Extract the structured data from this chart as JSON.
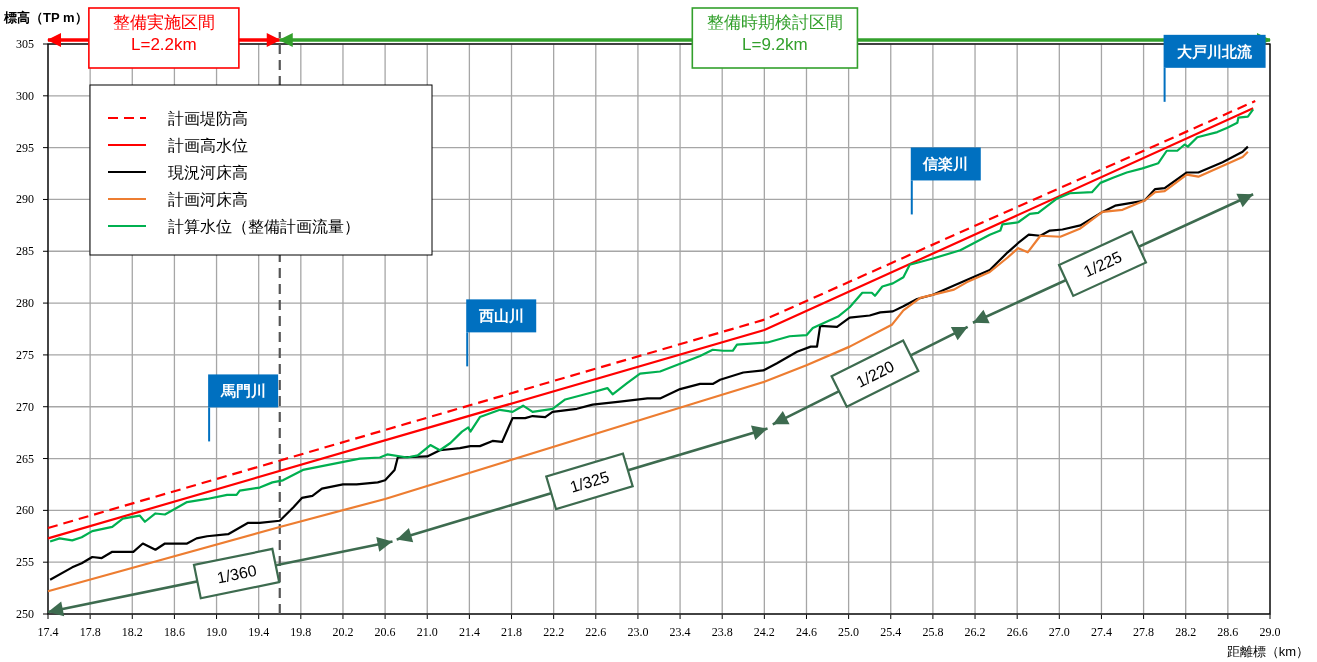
{
  "chart_data": {
    "type": "line",
    "xlabel": "距離標（km）",
    "ylabel": "標高（TP m）",
    "xlim": [
      17.4,
      29.0
    ],
    "ylim": [
      250,
      305
    ],
    "xticks": [
      17.4,
      17.8,
      18.2,
      18.6,
      {
        "value": 19.0,
        "label": "19.0"
      },
      19.4,
      19.8,
      20.2,
      20.6,
      {
        "value": 21.0,
        "label": "21.0"
      },
      21.4,
      21.8,
      22.2,
      22.6,
      {
        "value": 23.0,
        "label": "23.0"
      },
      23.4,
      23.8,
      24.2,
      24.6,
      {
        "value": 25.0,
        "label": "25.0"
      },
      25.4,
      25.8,
      26.2,
      26.6,
      {
        "value": 27.0,
        "label": "27.0"
      },
      27.4,
      27.8,
      28.2,
      28.6,
      {
        "value": 29.0,
        "label": "29.0"
      }
    ],
    "yticks": [
      250,
      255,
      260,
      265,
      270,
      275,
      280,
      285,
      290,
      295,
      300,
      305
    ],
    "grid": true,
    "legend": "top left",
    "series": [
      {
        "name": "計画堤防高",
        "color": "#ff0000",
        "line_style": "dashed",
        "x": [
          17.4,
          24.2,
          28.86
        ],
        "values": [
          258.3,
          278.4,
          299.5
        ]
      },
      {
        "name": "計画高水位",
        "color": "#ff0000",
        "line_style": "solid",
        "x": [
          17.4,
          24.2,
          28.84
        ],
        "values": [
          257.3,
          277.4,
          298.8
        ]
      },
      {
        "name": "現況河床高",
        "color": "#000000",
        "line_style": "solid",
        "x": [
          17.42,
          17.63,
          17.72,
          17.82,
          17.91,
          18.01,
          18.21,
          18.3,
          18.42,
          18.51,
          18.72,
          18.81,
          18.91,
          19.11,
          19.3,
          19.41,
          19.6,
          19.73,
          19.81,
          19.91,
          20.0,
          20.2,
          20.33,
          20.53,
          20.6,
          20.69,
          20.72,
          21.0,
          21.12,
          21.31,
          21.41,
          21.5,
          21.62,
          21.71,
          21.81,
          21.93,
          22.0,
          22.12,
          22.19,
          22.42,
          22.57,
          22.83,
          23.09,
          23.21,
          23.4,
          23.59,
          23.71,
          23.78,
          24.0,
          24.19,
          24.32,
          24.51,
          24.64,
          24.7,
          24.73,
          24.89,
          25.01,
          25.2,
          25.3,
          25.42,
          25.52,
          25.65,
          25.8,
          26.0,
          26.34,
          26.51,
          26.61,
          26.71,
          26.82,
          26.91,
          27.03,
          27.2,
          27.41,
          27.53,
          27.7,
          27.81,
          27.91,
          28.0,
          28.21,
          28.32,
          28.55,
          28.74,
          28.79
        ],
        "values": [
          253.3,
          254.5,
          254.9,
          255.5,
          255.4,
          256.0,
          256.0,
          256.8,
          256.2,
          256.8,
          256.8,
          257.3,
          257.5,
          257.7,
          258.8,
          258.8,
          259.0,
          260.3,
          261.2,
          261.4,
          262.1,
          262.5,
          262.5,
          262.7,
          262.9,
          263.9,
          265.1,
          265.2,
          265.8,
          266.0,
          266.2,
          266.2,
          266.7,
          266.6,
          268.9,
          268.9,
          269.1,
          269.0,
          269.5,
          269.8,
          270.2,
          270.5,
          270.8,
          270.8,
          271.7,
          272.2,
          272.2,
          272.6,
          273.3,
          273.5,
          274.2,
          275.3,
          275.8,
          275.8,
          277.8,
          277.7,
          278.6,
          278.8,
          279.1,
          279.2,
          279.7,
          280.4,
          280.8,
          281.7,
          283.2,
          284.9,
          285.8,
          286.6,
          286.5,
          287.0,
          287.1,
          287.5,
          288.8,
          289.4,
          289.7,
          289.9,
          291.0,
          291.1,
          292.6,
          292.6,
          293.6,
          294.6,
          295.1
        ]
      },
      {
        "name": "計画河床高",
        "color": "#ed7d31",
        "line_style": "solid",
        "x": [
          17.4,
          19.6,
          20.6,
          23.59,
          24.2,
          24.6,
          25.01,
          25.41,
          25.52,
          25.68,
          26.0,
          26.12,
          26.34,
          26.51,
          26.61,
          26.7,
          26.82,
          27.01,
          27.2,
          27.41,
          27.6,
          27.81,
          27.91,
          28.0,
          28.21,
          28.32,
          28.74,
          28.79
        ],
        "values": [
          252.2,
          258.4,
          261.1,
          270.5,
          272.4,
          274.0,
          275.8,
          277.9,
          279.3,
          280.5,
          281.3,
          282.0,
          283.0,
          284.4,
          285.3,
          284.9,
          286.5,
          286.4,
          287.2,
          288.8,
          289.0,
          289.9,
          290.7,
          290.8,
          292.4,
          292.2,
          294.1,
          294.6
        ]
      },
      {
        "name": "計算水位（整備計画流量）",
        "color": "#00b050",
        "line_style": "solid",
        "x": [
          17.42,
          17.51,
          17.63,
          17.72,
          17.82,
          18.01,
          18.11,
          18.27,
          18.32,
          18.42,
          18.51,
          18.72,
          18.91,
          19.1,
          19.19,
          19.22,
          19.41,
          19.53,
          19.63,
          19.82,
          20.36,
          20.55,
          20.62,
          20.81,
          20.91,
          21.03,
          21.12,
          21.22,
          21.33,
          21.39,
          21.41,
          21.5,
          21.69,
          21.81,
          21.91,
          22.0,
          22.19,
          22.31,
          22.57,
          22.71,
          22.76,
          22.9,
          23.02,
          23.21,
          23.59,
          23.71,
          23.81,
          23.9,
          23.94,
          24.23,
          24.44,
          24.6,
          24.66,
          24.9,
          25.01,
          25.13,
          25.22,
          25.25,
          25.32,
          25.42,
          25.52,
          25.58,
          25.8,
          26.06,
          26.34,
          26.44,
          26.46,
          26.61,
          26.72,
          26.8,
          26.98,
          27.1,
          27.31,
          27.39,
          27.51,
          27.64,
          27.79,
          27.94,
          28.02,
          28.12,
          28.19,
          28.22,
          28.31,
          28.5,
          28.59,
          28.69,
          28.7,
          28.79,
          28.84
        ],
        "values": [
          257.0,
          257.3,
          257.1,
          257.4,
          258.0,
          258.4,
          259.2,
          259.5,
          258.9,
          259.7,
          259.6,
          260.8,
          261.1,
          261.5,
          261.5,
          261.9,
          262.2,
          262.7,
          262.9,
          263.9,
          265.0,
          265.1,
          265.4,
          265.1,
          265.3,
          266.3,
          265.8,
          266.5,
          267.6,
          268.0,
          267.6,
          269.0,
          269.7,
          269.5,
          270.1,
          269.5,
          269.8,
          270.7,
          271.4,
          271.8,
          271.2,
          272.3,
          273.2,
          273.4,
          274.9,
          275.5,
          275.4,
          275.4,
          276.0,
          276.2,
          276.8,
          276.9,
          277.6,
          278.7,
          279.6,
          281.0,
          281.0,
          280.7,
          281.6,
          281.9,
          282.5,
          283.7,
          284.3,
          285.1,
          286.6,
          287.0,
          287.6,
          287.8,
          288.6,
          288.7,
          290.1,
          290.6,
          290.7,
          291.6,
          292.1,
          292.6,
          293.0,
          293.5,
          294.7,
          294.7,
          295.3,
          295.1,
          296.0,
          296.5,
          296.9,
          297.4,
          297.9,
          298.0,
          298.7
        ]
      },
      {
        "color": "#3d6b4f",
        "line_style": "solid",
        "x": [
          17.4,
          20.67
        ],
        "values": [
          250.2,
          257.0
        ]
      },
      {
        "color": "#3d6b4f",
        "line_style": "solid",
        "x": [
          20.71,
          24.23
        ],
        "values": [
          257.2,
          267.9
        ]
      },
      {
        "color": "#3d6b4f",
        "line_style": "solid",
        "x": [
          24.28,
          26.13
        ],
        "values": [
          268.3,
          277.7
        ]
      },
      {
        "color": "#3d6b4f",
        "line_style": "solid",
        "x": [
          26.18,
          28.84
        ],
        "values": [
          278.1,
          290.5
        ]
      }
    ],
    "ref_lines": [
      {
        "axis": "x",
        "value": 19.6,
        "color": "#555555",
        "line_style": "dashed"
      },
      {
        "axis": "x",
        "value": 18.92,
        "label": "馬門川",
        "color": "#0070c0"
      },
      {
        "axis": "x",
        "value": 21.37,
        "label": "西山川",
        "color": "#0070c0"
      },
      {
        "axis": "x",
        "value": 25.59,
        "label": "信楽川",
        "color": "#0070c0"
      },
      {
        "axis": "x",
        "value": 27.99,
        "label": "大戸川北流",
        "color": "#0070c0"
      }
    ],
    "annotations": [
      "整備実施区間\nL=2.2km",
      "整備時期検討区間\nL=9.2km",
      {
        "text": "1/360",
        "x": 19.19,
        "y": 253.9
      },
      {
        "text": "1/325",
        "x": 22.54,
        "y": 262.8
      },
      {
        "text": "1/220",
        "x": 25.25,
        "y": 273.2
      },
      {
        "text": "1/225",
        "x": 27.41,
        "y": 283.8
      }
    ]
  }
}
